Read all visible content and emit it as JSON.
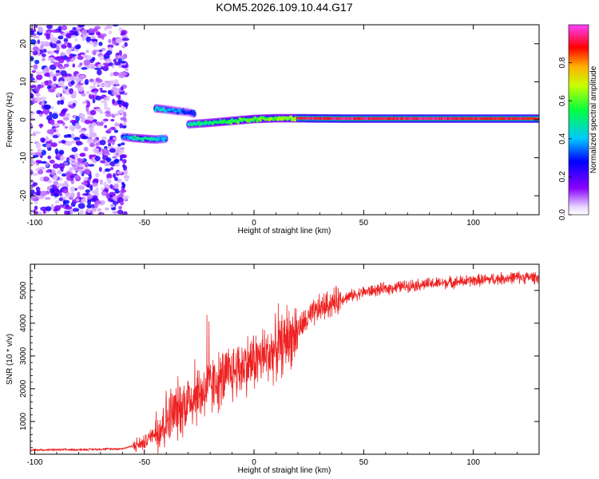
{
  "title": "KOM5.2026.109.10.44.G17",
  "chart_data": [
    {
      "type": "heatmap",
      "name": "spectrogram",
      "xlabel": "Height of straight line (km)",
      "ylabel": "Frequency (Hz)",
      "xlim": [
        -102,
        130
      ],
      "ylim": [
        -25,
        25
      ],
      "xticks": [
        -100,
        -50,
        0,
        50,
        100
      ],
      "yticks": [
        20,
        10,
        0,
        -10,
        -20
      ],
      "colorbar": {
        "label": "Normalized spectral amplitude",
        "range": [
          0,
          1
        ],
        "ticks": [
          "0.0",
          "0.2",
          "0.4",
          "0.6",
          "0.8"
        ]
      },
      "features": [
        {
          "kind": "noise",
          "x_range": [
            -102,
            -58
          ],
          "freq_range": [
            -25,
            25
          ],
          "amplitude_range": [
            0.05,
            0.3
          ]
        },
        {
          "kind": "trace",
          "x": [
            -60,
            -55,
            -50,
            -45,
            -40
          ],
          "freq": [
            -4.5,
            -4.8,
            -5,
            -5.2,
            -5
          ],
          "amplitude": [
            0.3,
            0.45,
            0.5,
            0.45,
            0.35
          ]
        },
        {
          "kind": "trace",
          "x": [
            -45,
            -40,
            -35,
            -30,
            -27
          ],
          "freq": [
            3,
            2.7,
            2.3,
            2,
            1.5
          ],
          "amplitude": [
            0.45,
            0.4,
            0.35,
            0.3,
            0.3
          ]
        },
        {
          "kind": "trace",
          "x": [
            -30,
            -20,
            -10,
            0,
            10,
            20
          ],
          "freq": [
            -1.2,
            -0.8,
            -0.3,
            0.2,
            0.4,
            0.4
          ],
          "amplitude": [
            0.45,
            0.5,
            0.55,
            0.6,
            0.62,
            0.65
          ]
        },
        {
          "kind": "trace",
          "x": [
            20,
            40,
            60,
            80,
            100,
            130
          ],
          "freq": [
            0.4,
            0.3,
            0.3,
            0.3,
            0.3,
            0.3
          ],
          "amplitude": [
            0.9,
            0.95,
            0.9,
            0.95,
            0.9,
            0.9
          ]
        }
      ]
    },
    {
      "type": "line",
      "name": "snr",
      "xlabel": "Height of straight line (km)",
      "ylabel": "SNR (10 * v/v)",
      "xlim": [
        -102,
        130
      ],
      "ylim": [
        0,
        5800
      ],
      "xticks": [
        -100,
        -50,
        0,
        50,
        100
      ],
      "yticks": [
        1000,
        2000,
        3000,
        4000,
        5000
      ],
      "trend": {
        "x": [
          -102,
          -80,
          -60,
          -50,
          -45,
          -40,
          -35,
          -30,
          -25,
          -20,
          -15,
          -10,
          -5,
          0,
          5,
          10,
          15,
          20,
          25,
          30,
          40,
          50,
          60,
          70,
          80,
          90,
          100,
          110,
          120,
          130
        ],
        "y": [
          130,
          140,
          170,
          350,
          700,
          1050,
          1350,
          1650,
          1850,
          2050,
          2250,
          2500,
          2700,
          2850,
          3000,
          3200,
          3450,
          3800,
          4150,
          4450,
          4750,
          4950,
          5050,
          5150,
          5200,
          5250,
          5300,
          5350,
          5400,
          5400
        ]
      },
      "spikes": [
        {
          "x": -21.5,
          "y": 4250
        },
        {
          "x": -20.5,
          "y": 4050
        },
        {
          "x": 11,
          "y": 4600
        },
        {
          "x": 15,
          "y": 4550
        },
        {
          "x": -27,
          "y": 2900
        },
        {
          "x": -17,
          "y": 2500
        }
      ]
    }
  ]
}
